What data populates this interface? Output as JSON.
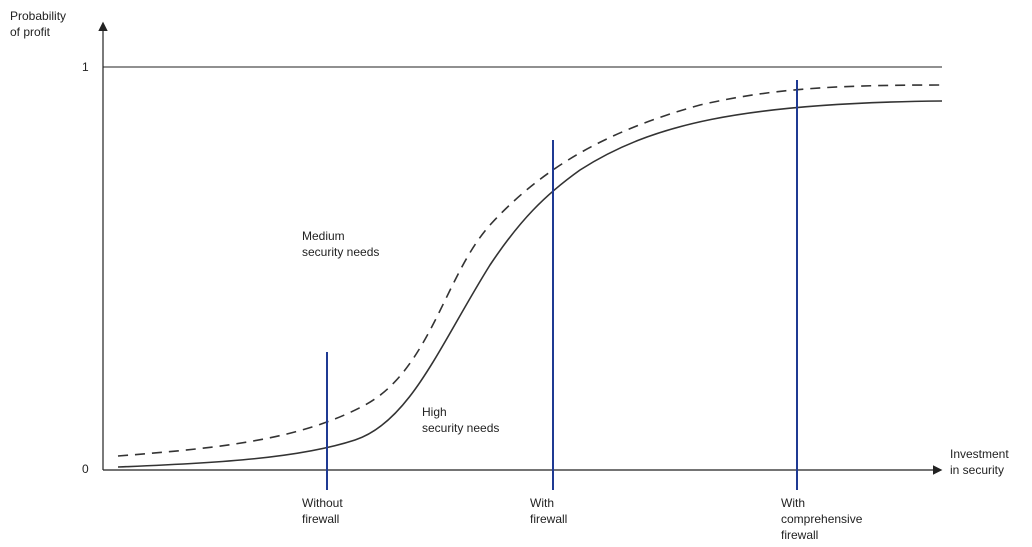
{
  "diagram": {
    "y_axis_label": "Probability\nof profit",
    "x_axis_label": "Investment\nin security",
    "y_ticks": [
      "1",
      "0"
    ],
    "curves": [
      {
        "name": "Medium\nsecurity needs",
        "style": "dashed"
      },
      {
        "name": "High\nsecurity needs",
        "style": "solid"
      }
    ],
    "markers": [
      {
        "label": "Without\nfirewall"
      },
      {
        "label": "With\nfirewall"
      },
      {
        "label": "With\ncomprehensive\nfirewall"
      }
    ],
    "colors": {
      "axis": "#222222",
      "curve": "#333333",
      "marker": "#1f3a93"
    }
  }
}
